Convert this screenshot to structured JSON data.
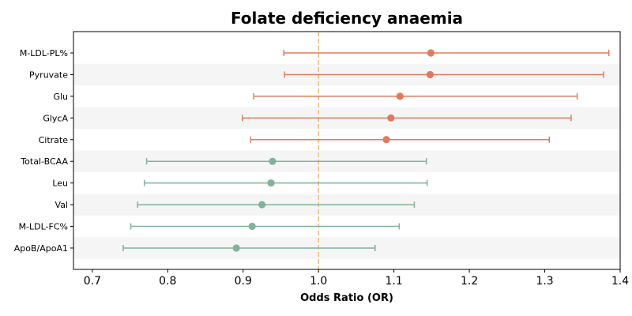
{
  "chart_data": {
    "type": "forest",
    "title": "Folate deficiency anaemia",
    "xlabel": "Odds Ratio (OR)",
    "xlim": [
      0.675,
      1.4
    ],
    "xticks": [
      0.7,
      0.8,
      0.9,
      1.0,
      1.1,
      1.2,
      1.3,
      1.4
    ],
    "xtick_labels": [
      "0.7",
      "0.8",
      "0.9",
      "1.0",
      "1.1",
      "1.2",
      "1.3",
      "1.4"
    ],
    "reference_line": 1.0,
    "row_banding": true,
    "categories": [
      "M-LDL-PL%",
      "Pyruvate",
      "Glu",
      "GlycA",
      "Citrate",
      "Total-BCAA",
      "Leu",
      "Val",
      "M-LDL-FC%",
      "ApoB/ApoA1"
    ],
    "series": [
      {
        "color": "#e07a5f",
        "points": [
          {
            "label": "M-LDL-PL%",
            "or": 1.149,
            "lower": 0.954,
            "upper": 1.385
          },
          {
            "label": "Pyruvate",
            "or": 1.148,
            "lower": 0.955,
            "upper": 1.378
          },
          {
            "label": "Glu",
            "or": 1.108,
            "lower": 0.914,
            "upper": 1.343
          },
          {
            "label": "GlycA",
            "or": 1.096,
            "lower": 0.899,
            "upper": 1.335
          },
          {
            "label": "Citrate",
            "or": 1.09,
            "lower": 0.91,
            "upper": 1.306
          }
        ]
      },
      {
        "color": "#81b29a",
        "points": [
          {
            "label": "Total-BCAA",
            "or": 0.939,
            "lower": 0.772,
            "upper": 1.143
          },
          {
            "label": "Leu",
            "or": 0.937,
            "lower": 0.769,
            "upper": 1.144
          },
          {
            "label": "Val",
            "or": 0.925,
            "lower": 0.76,
            "upper": 1.127
          },
          {
            "label": "M-LDL-FC%",
            "or": 0.912,
            "lower": 0.751,
            "upper": 1.107
          },
          {
            "label": "ApoB/ApoA1",
            "or": 0.891,
            "lower": 0.741,
            "upper": 1.075
          }
        ]
      }
    ],
    "colors": {
      "band": "#f5f5f5",
      "reference": "#f4c07a"
    }
  }
}
